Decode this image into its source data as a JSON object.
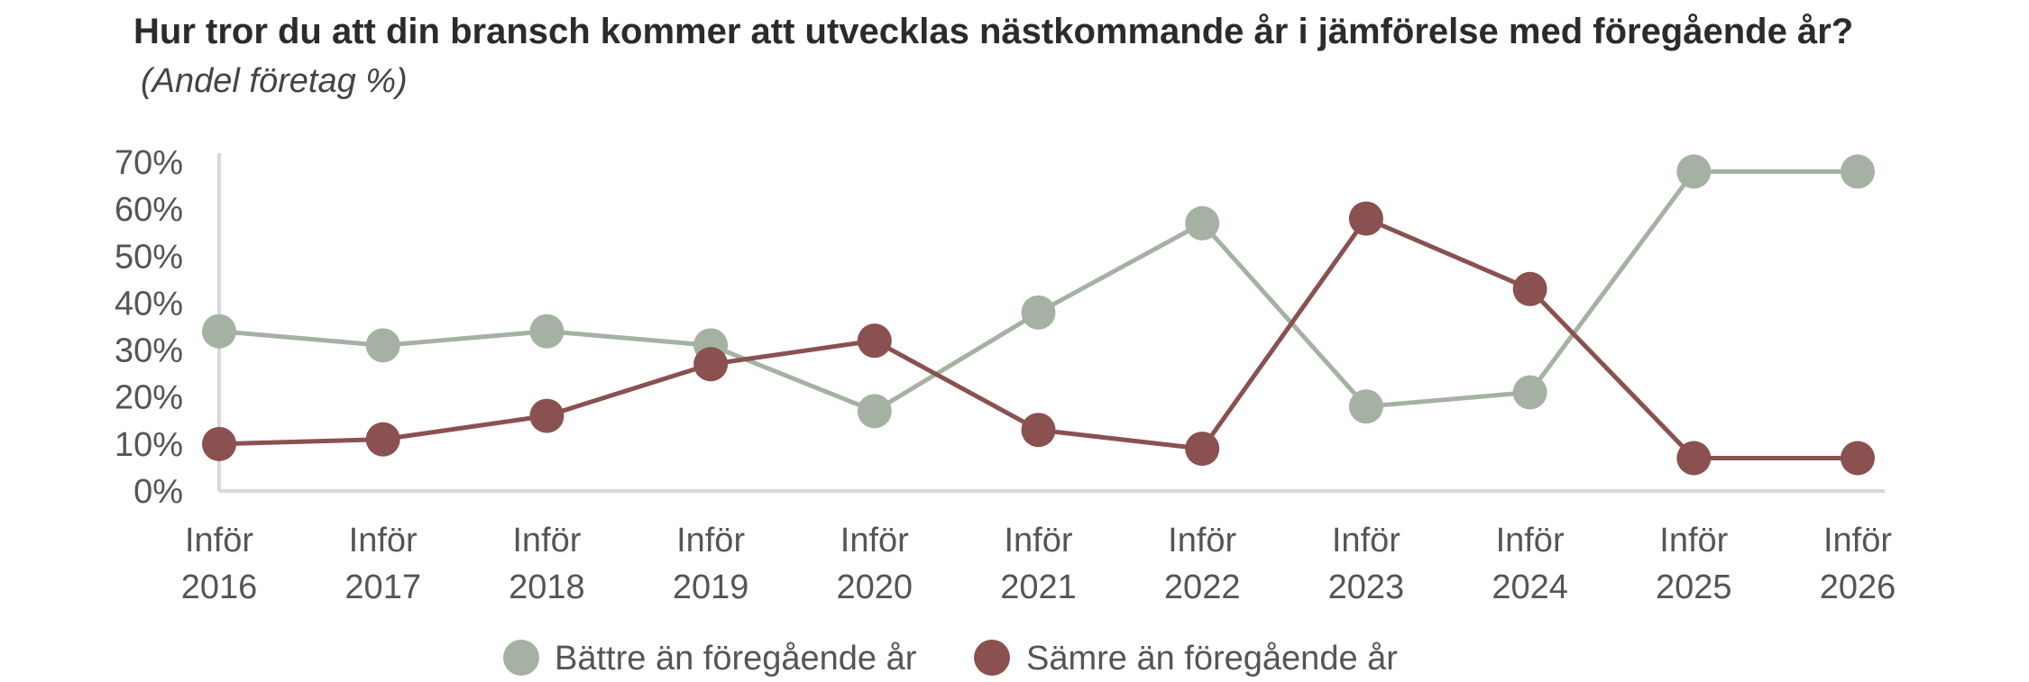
{
  "title": {
    "main": "Hur tror du att din bransch kommer att utvecklas nästkommande år i jämförelse med föregående år?",
    "subtitle": "(Andel företag %)"
  },
  "chart_data": {
    "type": "line",
    "categories": [
      [
        "Inför",
        "2016"
      ],
      [
        "Inför",
        "2017"
      ],
      [
        "Inför",
        "2018"
      ],
      [
        "Inför",
        "2019"
      ],
      [
        "Inför",
        "2020"
      ],
      [
        "Inför",
        "2021"
      ],
      [
        "Inför",
        "2022"
      ],
      [
        "Inför",
        "2023"
      ],
      [
        "Inför",
        "2024"
      ],
      [
        "Inför",
        "2025"
      ],
      [
        "Inför",
        "2026"
      ]
    ],
    "y_ticks": [
      "0%",
      "10%",
      "20%",
      "30%",
      "40%",
      "50%",
      "60%",
      "70%"
    ],
    "ylim": [
      0,
      70
    ],
    "series": [
      {
        "name": "Bättre än föregående år",
        "color": "#a4b1a3",
        "values": [
          34,
          31,
          34,
          31,
          17,
          38,
          57,
          18,
          21,
          68,
          68
        ]
      },
      {
        "name": "Sämre än föregående år",
        "color": "#8b5050",
        "values": [
          10,
          11,
          16,
          27,
          32,
          13,
          9,
          58,
          43,
          7,
          7
        ]
      }
    ],
    "legend_position": "bottom",
    "grid": false
  }
}
